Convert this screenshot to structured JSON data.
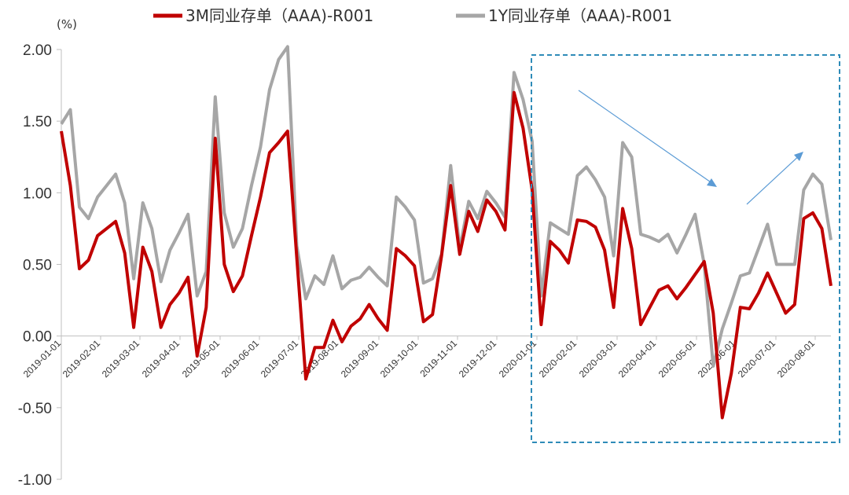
{
  "chart_data": {
    "type": "line",
    "unit_label": "(%)",
    "ylim": [
      -1.0,
      2.0
    ],
    "yticks": [
      "2.00",
      "1.50",
      "1.00",
      "0.50",
      "0.00",
      "-0.50",
      "-1.00"
    ],
    "x_ticks": [
      "2019-01-01",
      "2019-02-01",
      "2019-03-01",
      "2019-04-01",
      "2019-05-01",
      "2019-06-01",
      "2019-07-01",
      "2019-08-01",
      "2019-09-01",
      "2019-10-01",
      "2019-11-01",
      "2019-12-01",
      "2020-01-01",
      "2020-02-01",
      "2020-03-01",
      "2020-04-01",
      "2020-05-01",
      "2020-06-01",
      "2020-07-01",
      "2020-08-01"
    ],
    "grid": false,
    "legend_position": "top",
    "series": [
      {
        "name": "3M同业存单（AAA)-R001",
        "color": "#c00000",
        "values": [
          1.43,
          1.05,
          0.47,
          0.53,
          0.7,
          0.75,
          0.8,
          0.58,
          0.06,
          0.62,
          0.45,
          0.06,
          0.22,
          0.3,
          0.41,
          -0.14,
          0.2,
          1.38,
          0.5,
          0.31,
          0.42,
          0.7,
          0.97,
          1.28,
          1.35,
          1.43,
          0.55,
          -0.3,
          -0.08,
          -0.08,
          0.11,
          -0.04,
          0.07,
          0.12,
          0.22,
          0.12,
          0.04,
          0.61,
          0.56,
          0.49,
          0.1,
          0.15,
          0.56,
          1.05,
          0.57,
          0.87,
          0.73,
          0.95,
          0.87,
          0.74,
          1.7,
          1.45,
          1.02,
          0.08,
          0.66,
          0.6,
          0.51,
          0.81,
          0.8,
          0.76,
          0.6,
          0.2,
          0.89,
          0.61,
          0.08,
          0.2,
          0.32,
          0.35,
          0.26,
          0.34,
          0.43,
          0.52,
          0.16,
          -0.57,
          -0.26,
          0.2,
          0.19,
          0.3,
          0.44,
          0.3,
          0.16,
          0.22,
          0.82,
          0.86,
          0.75,
          0.35
        ]
      },
      {
        "name": "1Y同业存单（AAA)-R001",
        "color": "#a6a6a6",
        "values": [
          1.48,
          1.58,
          0.9,
          0.82,
          0.97,
          1.05,
          1.13,
          0.93,
          0.4,
          0.93,
          0.75,
          0.38,
          0.6,
          0.72,
          0.85,
          0.28,
          0.45,
          1.67,
          0.86,
          0.62,
          0.75,
          1.05,
          1.32,
          1.72,
          1.93,
          2.02,
          0.63,
          0.26,
          0.42,
          0.36,
          0.56,
          0.33,
          0.39,
          0.41,
          0.48,
          0.41,
          0.35,
          0.97,
          0.9,
          0.81,
          0.37,
          0.4,
          0.57,
          1.19,
          0.61,
          0.94,
          0.82,
          1.01,
          0.93,
          0.83,
          1.84,
          1.65,
          1.36,
          0.28,
          0.79,
          0.75,
          0.71,
          1.12,
          1.18,
          1.09,
          0.97,
          0.56,
          1.35,
          1.25,
          0.71,
          0.69,
          0.66,
          0.71,
          0.58,
          0.71,
          0.85,
          0.5,
          -0.21,
          0.05,
          0.23,
          0.42,
          0.44,
          0.61,
          0.78,
          0.5,
          0.5,
          0.5,
          1.02,
          1.13,
          1.06,
          0.67
        ]
      }
    ]
  }
}
